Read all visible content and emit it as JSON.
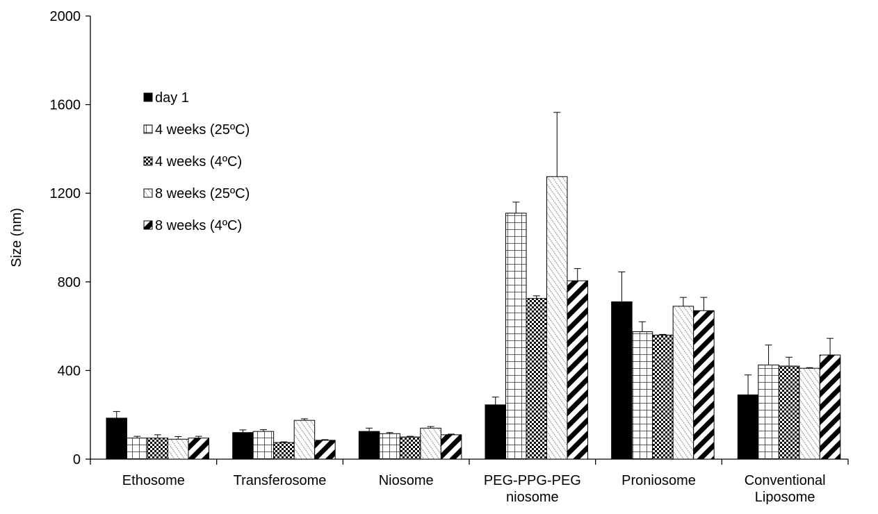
{
  "chart_data": {
    "type": "bar",
    "title": "",
    "xlabel": "",
    "ylabel": "Size (nm)",
    "ylim": [
      0,
      2000
    ],
    "yticks": [
      "0",
      "400",
      "800",
      "1200",
      "1600",
      "2000"
    ],
    "categories": [
      [
        "Ethosome"
      ],
      [
        "Transferosome"
      ],
      [
        "Niosome"
      ],
      [
        "PEG-PPG-PEG",
        "niosome"
      ],
      [
        "Proniosome"
      ],
      [
        "Conventional",
        "Liposome"
      ]
    ],
    "series": [
      {
        "name": "day 1",
        "pattern": "solid-black",
        "values": [
          185,
          120,
          125,
          245,
          710,
          290
        ],
        "errors": [
          30,
          12,
          15,
          35,
          135,
          90
        ]
      },
      {
        "name": "4 weeks (25ºC)",
        "pattern": "grid",
        "values": [
          95,
          125,
          115,
          1110,
          575,
          425
        ],
        "errors": [
          8,
          8,
          5,
          50,
          45,
          90
        ]
      },
      {
        "name": "4 weeks (4ºC)",
        "pattern": "checker",
        "values": [
          95,
          75,
          100,
          725,
          560,
          420
        ],
        "errors": [
          15,
          3,
          3,
          12,
          3,
          40
        ]
      },
      {
        "name": "8 weeks (25ºC)",
        "pattern": "light-diagonal",
        "values": [
          90,
          175,
          140,
          1275,
          690,
          410
        ],
        "errors": [
          12,
          7,
          7,
          290,
          40,
          3
        ]
      },
      {
        "name": "8 weeks (4ºC)",
        "pattern": "wide-diagonal",
        "values": [
          95,
          85,
          110,
          805,
          670,
          470
        ],
        "errors": [
          8,
          3,
          3,
          55,
          60,
          75
        ]
      }
    ],
    "grid": false,
    "legend_position": "top-left",
    "colors": {
      "axis": "#000000",
      "bar_stroke": "#000000",
      "bar_fill": "#000000",
      "background": "#ffffff",
      "light_hatch": "#8c8c8c"
    }
  }
}
